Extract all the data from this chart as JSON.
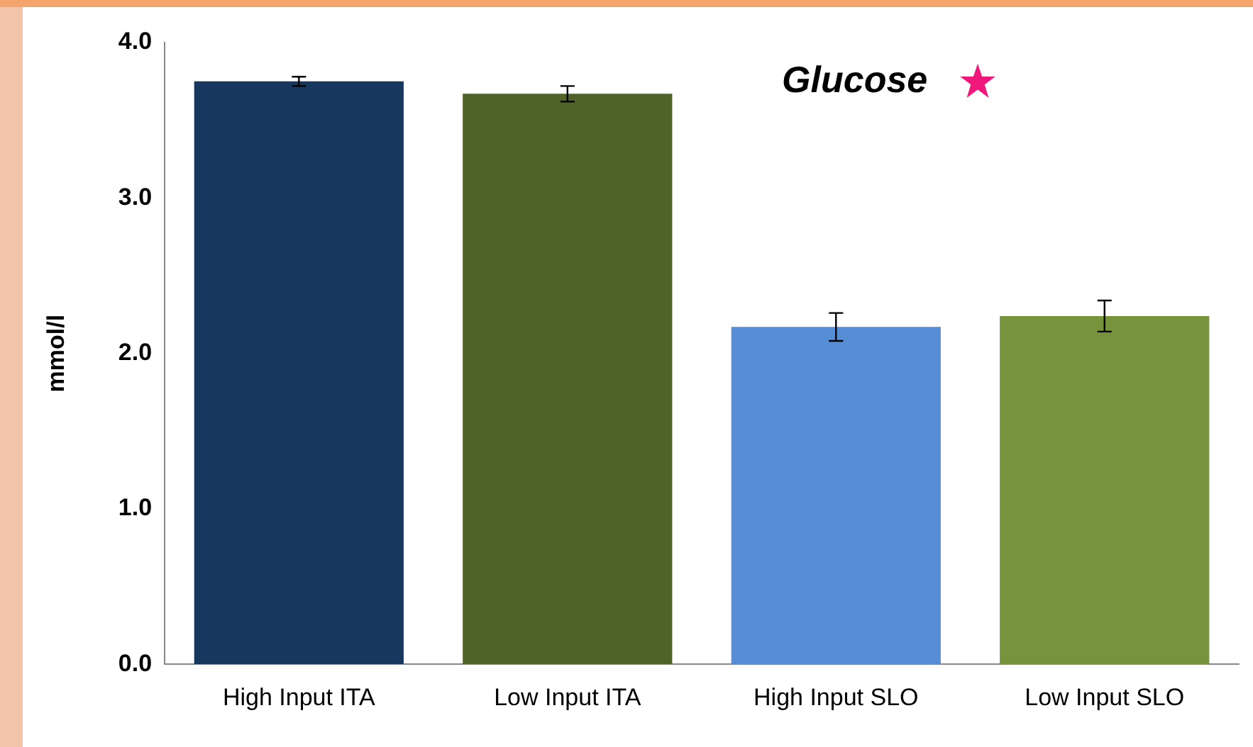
{
  "chart_data": {
    "type": "bar",
    "ylabel": "mmol/l",
    "annotations": [
      "Glucose"
    ],
    "categories": [
      "High Input ITA",
      "Low Input ITA",
      "High Input SLO",
      "Low Input SLO"
    ],
    "values": [
      3.75,
      3.67,
      2.17,
      2.24
    ],
    "colors": [
      "#17375e",
      "#4f6228",
      "#558ed5",
      "#77933c"
    ],
    "errors": [
      0.03,
      0.05,
      0.09,
      0.1
    ],
    "ylim": [
      0,
      4
    ],
    "yticks": [
      {
        "value": 0,
        "label": "0.0"
      },
      {
        "value": 1,
        "label": "1.0"
      },
      {
        "value": 2,
        "label": "2.0"
      },
      {
        "value": 3,
        "label": "3.0"
      },
      {
        "value": 4,
        "label": "4.0"
      }
    ],
    "grid": false,
    "legend": false
  }
}
